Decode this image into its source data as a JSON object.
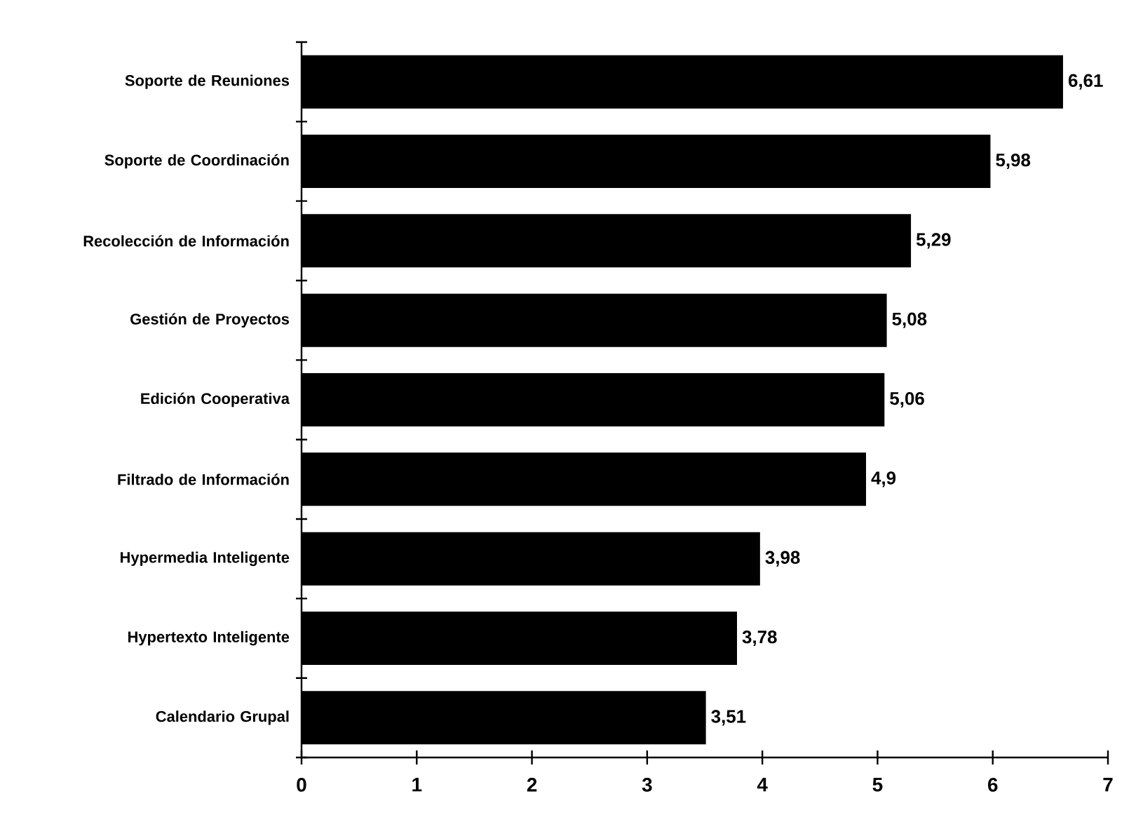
{
  "chart_data": {
    "type": "bar",
    "orientation": "horizontal",
    "categories": [
      "Soporte de Reuniones",
      "Soporte de Coordinación",
      "Recolección de Información",
      "Gestión de Proyectos",
      "Edición Cooperativa",
      "Filtrado de Información",
      "Hypermedia Inteligente",
      "Hypertexto Inteligente",
      "Calendario Grupal"
    ],
    "values": [
      6.61,
      5.98,
      5.29,
      5.08,
      5.06,
      4.9,
      3.98,
      3.78,
      3.51
    ],
    "value_labels": [
      "6,61",
      "5,98",
      "5,29",
      "5,08",
      "5,06",
      "4,9",
      "3,98",
      "3,78",
      "3,51"
    ],
    "color": "#000000",
    "xlim": [
      0,
      7
    ],
    "xticks": [
      0,
      1,
      2,
      3,
      4,
      5,
      6,
      7
    ]
  }
}
